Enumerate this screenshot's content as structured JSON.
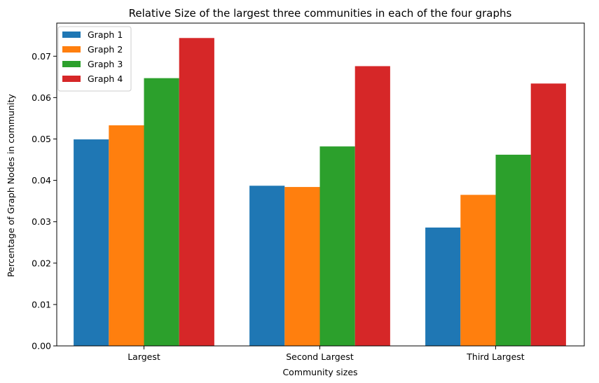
{
  "chart_data": {
    "type": "bar",
    "title": "Relative Size of the largest three communities in each of the four graphs",
    "xlabel": "Community sizes",
    "ylabel": "Percentage of Graph Nodes in community",
    "categories": [
      "Largest",
      "Second Largest",
      "Third Largest"
    ],
    "series": [
      {
        "name": "Graph 1",
        "color": "#1f77b4",
        "values": [
          0.0499,
          0.0387,
          0.0286
        ]
      },
      {
        "name": "Graph 2",
        "color": "#ff7f0e",
        "values": [
          0.0533,
          0.0384,
          0.0365
        ]
      },
      {
        "name": "Graph 3",
        "color": "#2ca02c",
        "values": [
          0.0647,
          0.0482,
          0.0462
        ]
      },
      {
        "name": "Graph 4",
        "color": "#d62728",
        "values": [
          0.0744,
          0.0676,
          0.0634
        ]
      }
    ],
    "ylim": [
      0,
      0.078
    ],
    "yticks": [
      "0.00",
      "0.01",
      "0.02",
      "0.03",
      "0.04",
      "0.05",
      "0.06",
      "0.07"
    ],
    "legend_position": "top-left",
    "grid": false
  }
}
